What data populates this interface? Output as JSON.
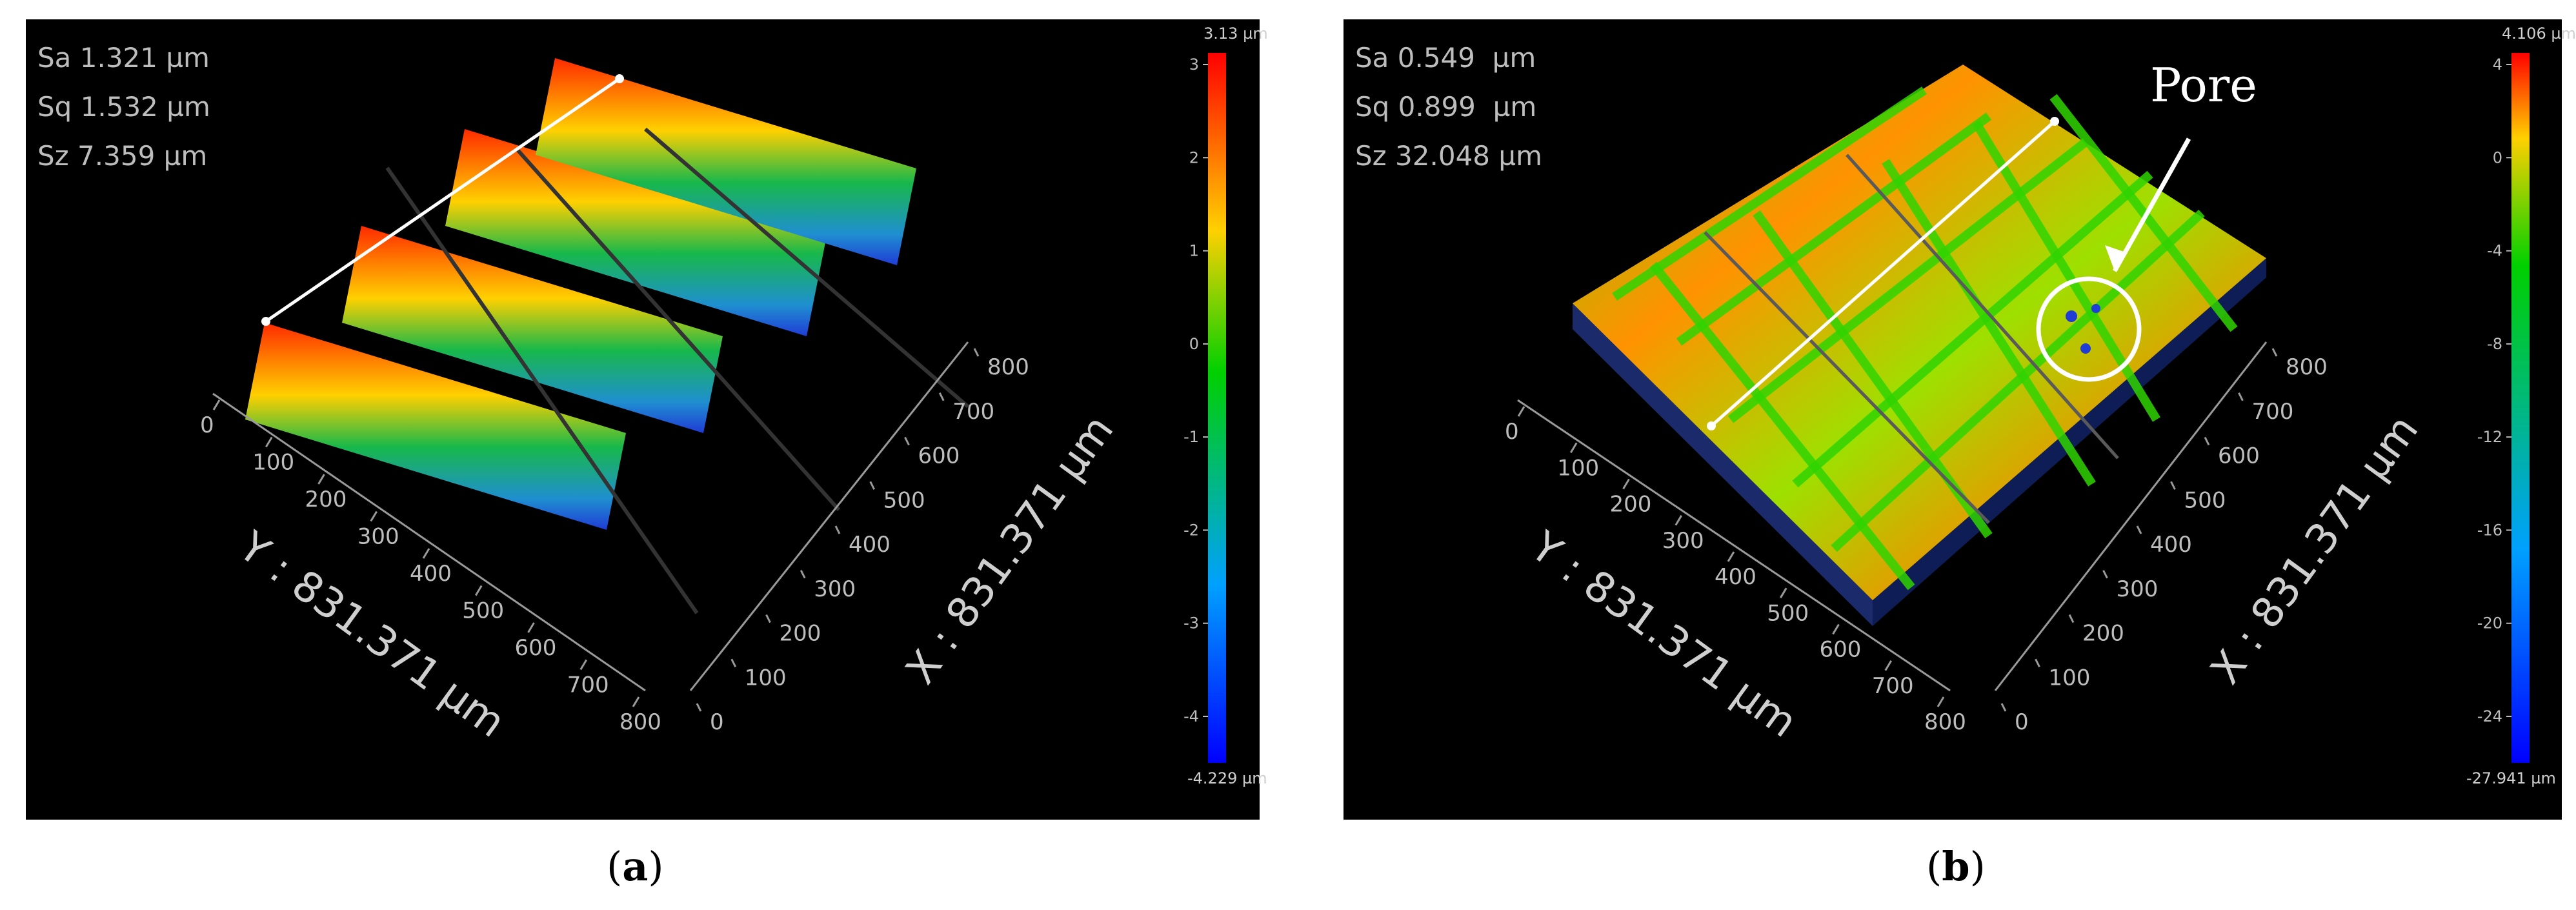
{
  "panels": [
    {
      "id": "a",
      "caption_letter": "a",
      "stats": [
        "Sa 1.321 µm",
        "Sq 1.532 µm",
        "Sz 7.359 µm"
      ],
      "colorbar": {
        "max_label": "3.13 µm",
        "min_label": "-4.229 µm",
        "ticks": [
          "3",
          "2",
          "1",
          "0",
          "-1",
          "-2",
          "-3",
          "-4"
        ]
      },
      "y_axis_title": "Y : 831.371 µm",
      "x_axis_title": "X : 831.371 µm",
      "y_ticks": [
        "0",
        "100",
        "200",
        "300",
        "400",
        "500",
        "600",
        "700",
        "800"
      ],
      "x_ticks": [
        "0",
        "100",
        "200",
        "300",
        "400",
        "500",
        "600",
        "700",
        "800"
      ]
    },
    {
      "id": "b",
      "caption_letter": "b",
      "stats": [
        "Sa 0.549  µm",
        "Sq 0.899  µm",
        "Sz 32.048 µm"
      ],
      "colorbar": {
        "max_label": "4.106 µm",
        "min_label": "-27.941 µm",
        "ticks": [
          "4",
          "0",
          "-4",
          "-8",
          "-12",
          "-16",
          "-20",
          "-24"
        ]
      },
      "y_axis_title": "Y : 831.371 µm",
      "x_axis_title": "X : 831.371 µm",
      "y_ticks": [
        "0",
        "100",
        "200",
        "300",
        "400",
        "500",
        "600",
        "700",
        "800"
      ],
      "x_ticks": [
        "0",
        "100",
        "200",
        "300",
        "400",
        "500",
        "600",
        "700",
        "800"
      ],
      "annotation": "Pore"
    }
  ],
  "colors": {
    "background": "#000000",
    "ridge_top": "#ff2a00",
    "ridge_mid": "#ffd000",
    "ridge_low": "#18b84a",
    "ridge_base": "#1f3cd6",
    "surface_b": "#8fe000",
    "surface_b_warm": "#ff8a00"
  }
}
